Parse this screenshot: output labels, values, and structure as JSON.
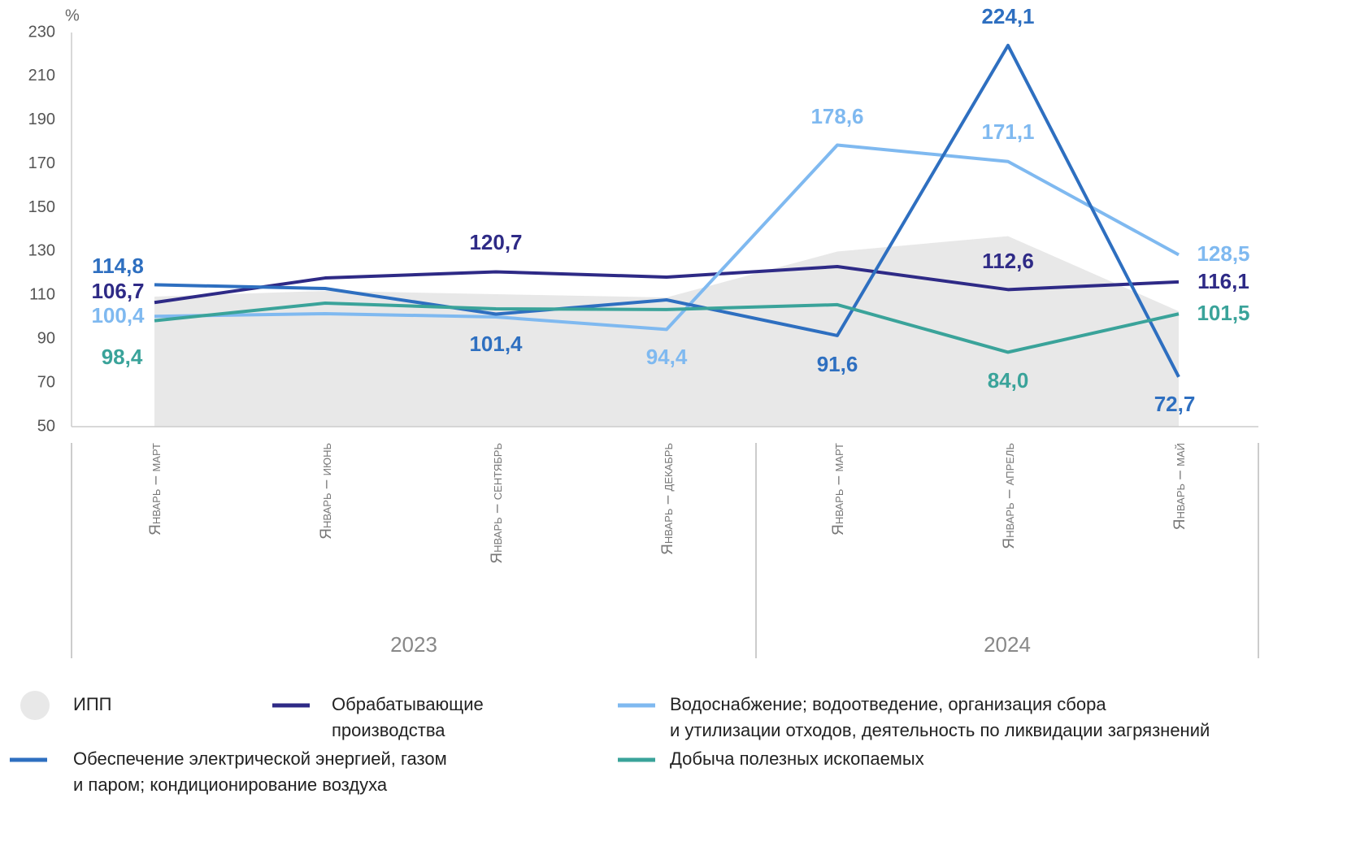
{
  "chart_data": {
    "type": "line",
    "y_label": "%",
    "categories": [
      "Январь – март",
      "Январь – июнь",
      "Январь – сентябрь",
      "Январь – декабрь",
      "Январь – март",
      "Январь – апрель",
      "Январь – май"
    ],
    "groups": [
      {
        "label": "2023",
        "span": 4
      },
      {
        "label": "2024",
        "span": 3
      }
    ],
    "ylim": [
      50,
      230
    ],
    "yticks": [
      50,
      70,
      90,
      110,
      130,
      150,
      170,
      190,
      210,
      230
    ],
    "series": [
      {
        "name": "ИПП",
        "color": "#e8e8e8",
        "area": true,
        "values": [
          109.4,
          112,
          110.5,
          109,
          130,
          137,
          102.7
        ]
      },
      {
        "name": "Обрабатывающие\nпроизводства",
        "color": "#2e2a86",
        "values": [
          106.7,
          117.9,
          120.7,
          118.3,
          123.1,
          112.6,
          116.1
        ],
        "value_labels": [
          "106,7",
          null,
          "120,7",
          null,
          null,
          "112,6",
          "116,1"
        ]
      },
      {
        "name": "Водоснабжение; водоотведение, организация сбора\nи утилизации отходов, деятельность по ликвидации загрязнений",
        "color": "#7fb9f0",
        "values": [
          100.4,
          101.6,
          100.1,
          94.4,
          178.6,
          171.1,
          128.5
        ],
        "value_labels": [
          "100,4",
          null,
          null,
          "94,4",
          "178,6",
          "171,1",
          "128,5"
        ]
      },
      {
        "name": "Обеспечение электрической энергией, газом\nи паром; кондиционирование воздуха",
        "color": "#2e6fc0",
        "values": [
          114.8,
          113.1,
          101.4,
          107.9,
          91.6,
          224.1,
          72.7
        ],
        "value_labels": [
          "114,8",
          null,
          "101,4",
          null,
          "91,6",
          "224,1",
          "72,7"
        ]
      },
      {
        "name": "Добыча полезных ископаемых",
        "color": "#3aa39a",
        "values": [
          98.4,
          106.4,
          103.8,
          103.5,
          105.7,
          84.0,
          101.5
        ],
        "value_labels": [
          "98,4",
          null,
          null,
          null,
          null,
          "84,0",
          "101,5"
        ]
      }
    ]
  }
}
